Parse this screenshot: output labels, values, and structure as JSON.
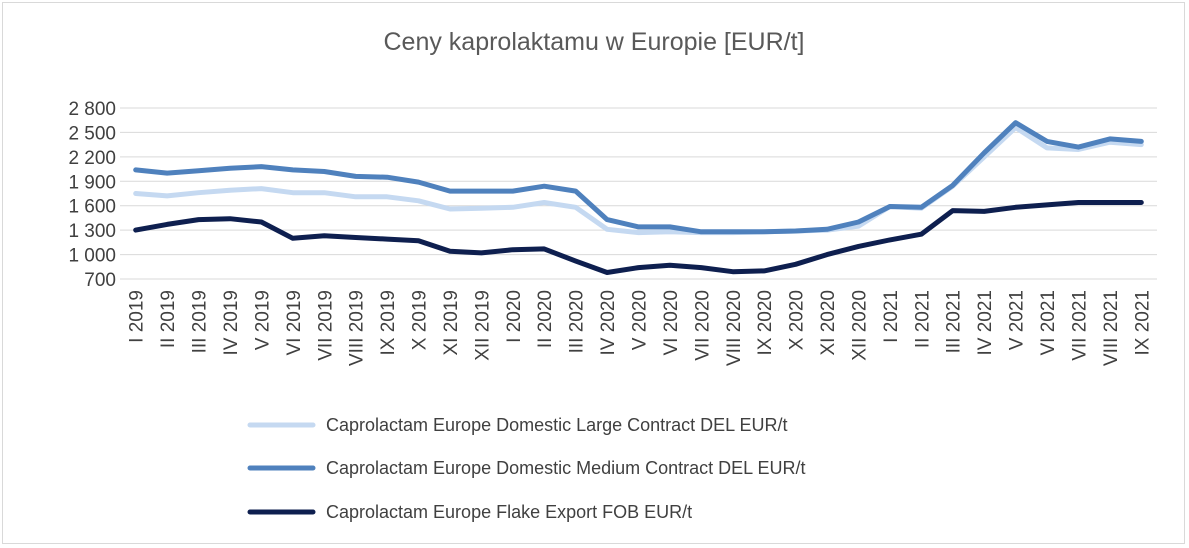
{
  "chart_data": {
    "type": "line",
    "title": "Ceny kaprolaktamu w Europie [EUR/t]",
    "xlabel": "",
    "ylabel": "",
    "ylim": [
      700,
      2800
    ],
    "yticks": [
      700,
      1000,
      1300,
      1600,
      1900,
      2200,
      2500,
      2800
    ],
    "ytick_labels": [
      "700",
      "1 000",
      "1 300",
      "1 600",
      "1 900",
      "2 200",
      "2 500",
      "2 800"
    ],
    "grid": true,
    "legend_position": "bottom",
    "categories": [
      "I 2019",
      "II 2019",
      "III 2019",
      "IV 2019",
      "V 2019",
      "VI 2019",
      "VII 2019",
      "VIII 2019",
      "IX 2019",
      "X 2019",
      "XI 2019",
      "XII 2019",
      "I 2020",
      "II 2020",
      "III 2020",
      "IV 2020",
      "V 2020",
      "VI 2020",
      "VII 2020",
      "VIII 2020",
      "IX 2020",
      "X 2020",
      "XI 2020",
      "XII 2020",
      "I 2021",
      "II 2021",
      "III 2021",
      "IV 2021",
      "V 2021",
      "VI 2021",
      "VII 2021",
      "VIII 2021",
      "IX 2021"
    ],
    "series": [
      {
        "name": "Caprolactam Europe Domestic Large Contract DEL EUR/t",
        "color": "#c5d9f1",
        "values": [
          1750,
          1720,
          1760,
          1790,
          1810,
          1760,
          1760,
          1710,
          1710,
          1660,
          1560,
          1570,
          1580,
          1640,
          1580,
          1310,
          1270,
          1280,
          1270,
          1270,
          1280,
          1290,
          1300,
          1350,
          1590,
          1570,
          1840,
          2200,
          2560,
          2310,
          2290,
          2380,
          2350
        ]
      },
      {
        "name": "Caprolactam Europe Domestic Medium Contract DEL EUR/t",
        "color": "#4f81bd",
        "values": [
          2040,
          2000,
          2030,
          2060,
          2080,
          2040,
          2020,
          1960,
          1950,
          1890,
          1780,
          1780,
          1780,
          1840,
          1780,
          1430,
          1340,
          1340,
          1280,
          1280,
          1280,
          1290,
          1310,
          1400,
          1590,
          1580,
          1850,
          2250,
          2620,
          2390,
          2320,
          2420,
          2390
        ]
      },
      {
        "name": "Caprolactam Europe Flake Export FOB EUR/t",
        "color": "#0e1f4f",
        "values": [
          1300,
          1370,
          1430,
          1440,
          1400,
          1200,
          1230,
          1210,
          1190,
          1170,
          1040,
          1020,
          1060,
          1070,
          920,
          780,
          840,
          870,
          840,
          790,
          800,
          880,
          1000,
          1100,
          1180,
          1250,
          1540,
          1530,
          1580,
          1610,
          1640,
          1640,
          1640
        ]
      }
    ]
  }
}
